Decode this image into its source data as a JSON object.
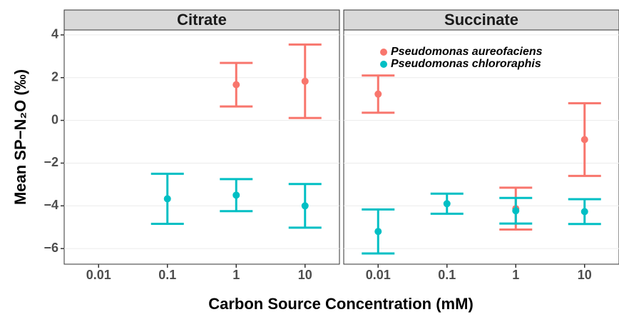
{
  "chart_data": [
    {
      "type": "errorbar",
      "title": "Citrate",
      "xlabel": "Carbon Source Concentration (mM)",
      "ylabel": "Mean SP−N₂O (‰)",
      "categories": [
        "0.01",
        "0.1",
        "1",
        "10"
      ],
      "ylim": [
        -6.73,
        4.23
      ],
      "yticks": [
        {
          "value": -6,
          "label": "−6"
        },
        {
          "value": -4,
          "label": "−4"
        },
        {
          "value": -2,
          "label": "−2"
        },
        0,
        2,
        4
      ],
      "grid": true,
      "series": [
        {
          "name": "Pseudomonas aureofaciens",
          "color": "#f8766d",
          "values": [
            null,
            null,
            1.67,
            1.83
          ],
          "errors": [
            null,
            null,
            1.02,
            1.72
          ]
        },
        {
          "name": "Pseudomonas chlororaphis",
          "color": "#00bfc4",
          "values": [
            null,
            -3.67,
            -3.5,
            -4.0
          ],
          "errors": [
            null,
            1.17,
            0.75,
            1.02
          ]
        }
      ]
    },
    {
      "type": "errorbar",
      "title": "Succinate",
      "categories": [
        "0.01",
        "0.1",
        "1",
        "10"
      ],
      "ylim": [
        -6.73,
        4.23
      ],
      "yticks": [
        {
          "value": -6,
          "label": "−6"
        },
        {
          "value": -4,
          "label": "−4"
        },
        {
          "value": -2,
          "label": "−2"
        },
        0,
        2,
        4
      ],
      "grid": true,
      "legend": "top-right",
      "series": [
        {
          "name": "Pseudomonas aureofaciens",
          "color": "#f8766d",
          "values": [
            1.23,
            null,
            -4.13,
            -0.9
          ],
          "errors": [
            0.87,
            null,
            0.98,
            1.7
          ]
        },
        {
          "name": "Pseudomonas chlororaphis",
          "color": "#00bfc4",
          "values": [
            -5.2,
            -3.9,
            -4.23,
            -4.27
          ],
          "errors": [
            1.03,
            0.47,
            0.6,
            0.58
          ]
        }
      ]
    }
  ]
}
